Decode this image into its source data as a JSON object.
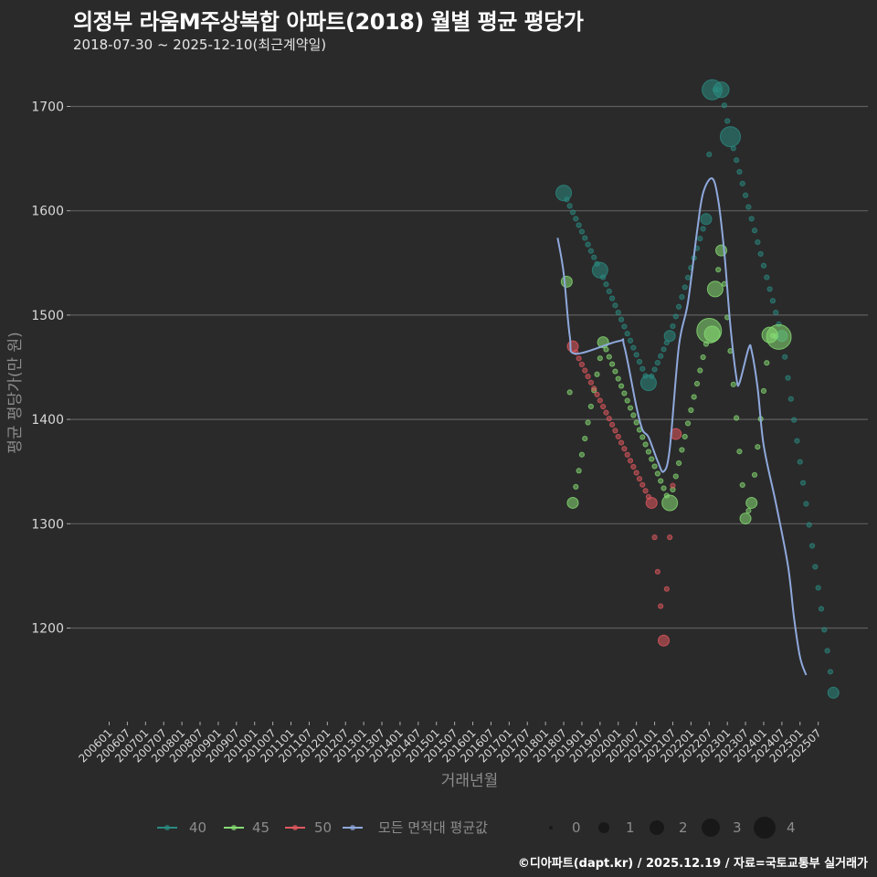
{
  "header": {
    "title": "의정부 라움M주상복합 아파트(2018) 월별 평균 평당가",
    "subtitle": "2018-07-30 ~ 2025-12-10(최근계약일)"
  },
  "caption": "©디아파트(dapt.kr) / 2025.12.19 / 자료=국토교통부 실거래가",
  "colors": {
    "background": "#2a2a2b",
    "grid": "#5e5e5e",
    "s40": "#2a8a80",
    "s45": "#86dc72",
    "s50": "#e2585e",
    "avg": "#8fa9dc"
  },
  "chart_data": {
    "type": "scatter",
    "title": "의정부 라움M주상복합 아파트(2018) 월별 평균 평당가",
    "subtitle": "2018-07-30 ~ 2025-12-10(최근계약일)",
    "xlabel": "거래년월",
    "ylabel": "평균 평당가(만 원)",
    "ylim": [
      1110,
      1740
    ],
    "yticks": [
      1200,
      1300,
      1400,
      1500,
      1600,
      1700
    ],
    "grid": true,
    "legend_position": "bottom",
    "x_tick_labels": [
      "200601",
      "200607",
      "200701",
      "200707",
      "200801",
      "200807",
      "200901",
      "200907",
      "201001",
      "201007",
      "201101",
      "201107",
      "201201",
      "201207",
      "201301",
      "201307",
      "201401",
      "201407",
      "201501",
      "201507",
      "201601",
      "201607",
      "201701",
      "201707",
      "201801",
      "201807",
      "201901",
      "201907",
      "202001",
      "202007",
      "202101",
      "202107",
      "202201",
      "202207",
      "202301",
      "202307",
      "202401",
      "202407",
      "202501",
      "202507"
    ],
    "size_legend": {
      "title": "",
      "values": [
        0,
        1,
        2,
        3,
        4
      ]
    },
    "series": [
      {
        "name": "40",
        "color_key": "s40",
        "points": [
          [
            "201807",
            1617,
            2
          ],
          [
            "201907",
            1543,
            2
          ],
          [
            "202011",
            1435,
            2
          ],
          [
            "202106",
            1480,
            1
          ],
          [
            "202206",
            1592,
            1
          ],
          [
            "202208",
            1716,
            3
          ],
          [
            "202211",
            1716,
            2
          ],
          [
            "202302",
            1671,
            3
          ],
          [
            "202407",
            1480,
            1
          ],
          [
            "202512",
            1138,
            1
          ]
        ]
      },
      {
        "name": "45",
        "color_key": "s45",
        "points": [
          [
            "201808",
            1532,
            1
          ],
          [
            "201810",
            1320,
            1
          ],
          [
            "201908",
            1474,
            1
          ],
          [
            "202106",
            1320,
            2
          ],
          [
            "202207",
            1485,
            4
          ],
          [
            "202208",
            1482,
            2
          ],
          [
            "202209",
            1525,
            2
          ],
          [
            "202211",
            1562,
            1
          ],
          [
            "202307",
            1305,
            1
          ],
          [
            "202309",
            1320,
            1
          ],
          [
            "202403",
            1481,
            2
          ],
          [
            "202406",
            1479,
            4
          ]
        ]
      },
      {
        "name": "50",
        "color_key": "s50",
        "points": [
          [
            "201810",
            1470,
            1
          ],
          [
            "202012",
            1320,
            1
          ],
          [
            "202104",
            1188,
            1
          ],
          [
            "202108",
            1386,
            1
          ]
        ]
      }
    ],
    "average": {
      "name": "모든 면적대 평균값",
      "color_key": "avg",
      "points": [
        [
          "201805",
          1574
        ],
        [
          "201807",
          1540
        ],
        [
          "201809",
          1480
        ],
        [
          "201811",
          1463
        ],
        [
          "202001",
          1475
        ],
        [
          "202003",
          1470
        ],
        [
          "202007",
          1412
        ],
        [
          "202009",
          1390
        ],
        [
          "202011",
          1383
        ],
        [
          "202102",
          1360
        ],
        [
          "202104",
          1350
        ],
        [
          "202106",
          1372
        ],
        [
          "202109",
          1470
        ],
        [
          "202112",
          1512
        ],
        [
          "202203",
          1580
        ],
        [
          "202205",
          1617
        ],
        [
          "202208",
          1631
        ],
        [
          "202210",
          1610
        ],
        [
          "202212",
          1560
        ],
        [
          "202302",
          1490
        ],
        [
          "202304",
          1440
        ],
        [
          "202305",
          1435
        ],
        [
          "202308",
          1468
        ],
        [
          "202309",
          1466
        ],
        [
          "202311",
          1430
        ],
        [
          "202401",
          1375
        ],
        [
          "202405",
          1320
        ],
        [
          "202409",
          1260
        ],
        [
          "202411",
          1210
        ],
        [
          "202501",
          1172
        ],
        [
          "202503",
          1155
        ]
      ]
    }
  },
  "legend": {
    "items": [
      {
        "label": "40",
        "color_key": "s40"
      },
      {
        "label": "45",
        "color_key": "s45"
      },
      {
        "label": "50",
        "color_key": "s50"
      },
      {
        "label": "모든 면적대 평균값",
        "color_key": "avg"
      }
    ],
    "sizes": [
      "0",
      "1",
      "2",
      "3",
      "4"
    ]
  }
}
